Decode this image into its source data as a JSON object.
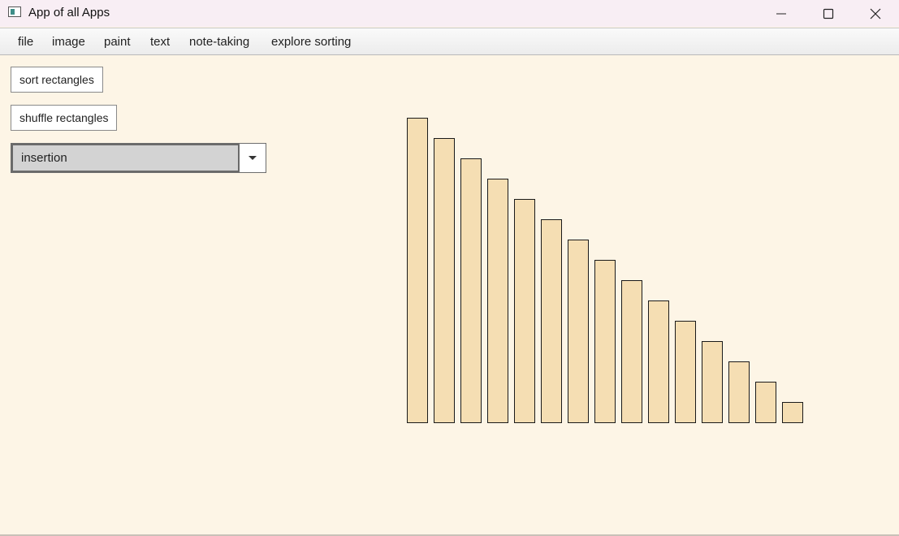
{
  "window": {
    "title": "App of all Apps"
  },
  "menu": {
    "items": [
      {
        "label": "file"
      },
      {
        "label": "image"
      },
      {
        "label": "paint"
      },
      {
        "label": "text"
      },
      {
        "label": "note-taking"
      },
      {
        "label": "explore sorting"
      }
    ]
  },
  "controls": {
    "sort_label": "sort rectangles",
    "shuffle_label": "shuffle rectangles",
    "algorithm_selected": "insertion"
  },
  "rectangles": {
    "values": [
      15,
      14,
      13,
      12,
      11,
      10,
      9,
      8,
      7,
      6,
      5,
      4,
      3,
      2,
      1
    ],
    "fill": "#f5deb3",
    "stroke": "#1a1a1a"
  },
  "colors": {
    "background": "#fdf5e6",
    "titlebar": "#f8eef4",
    "combo_fill": "#d3d3d3"
  }
}
